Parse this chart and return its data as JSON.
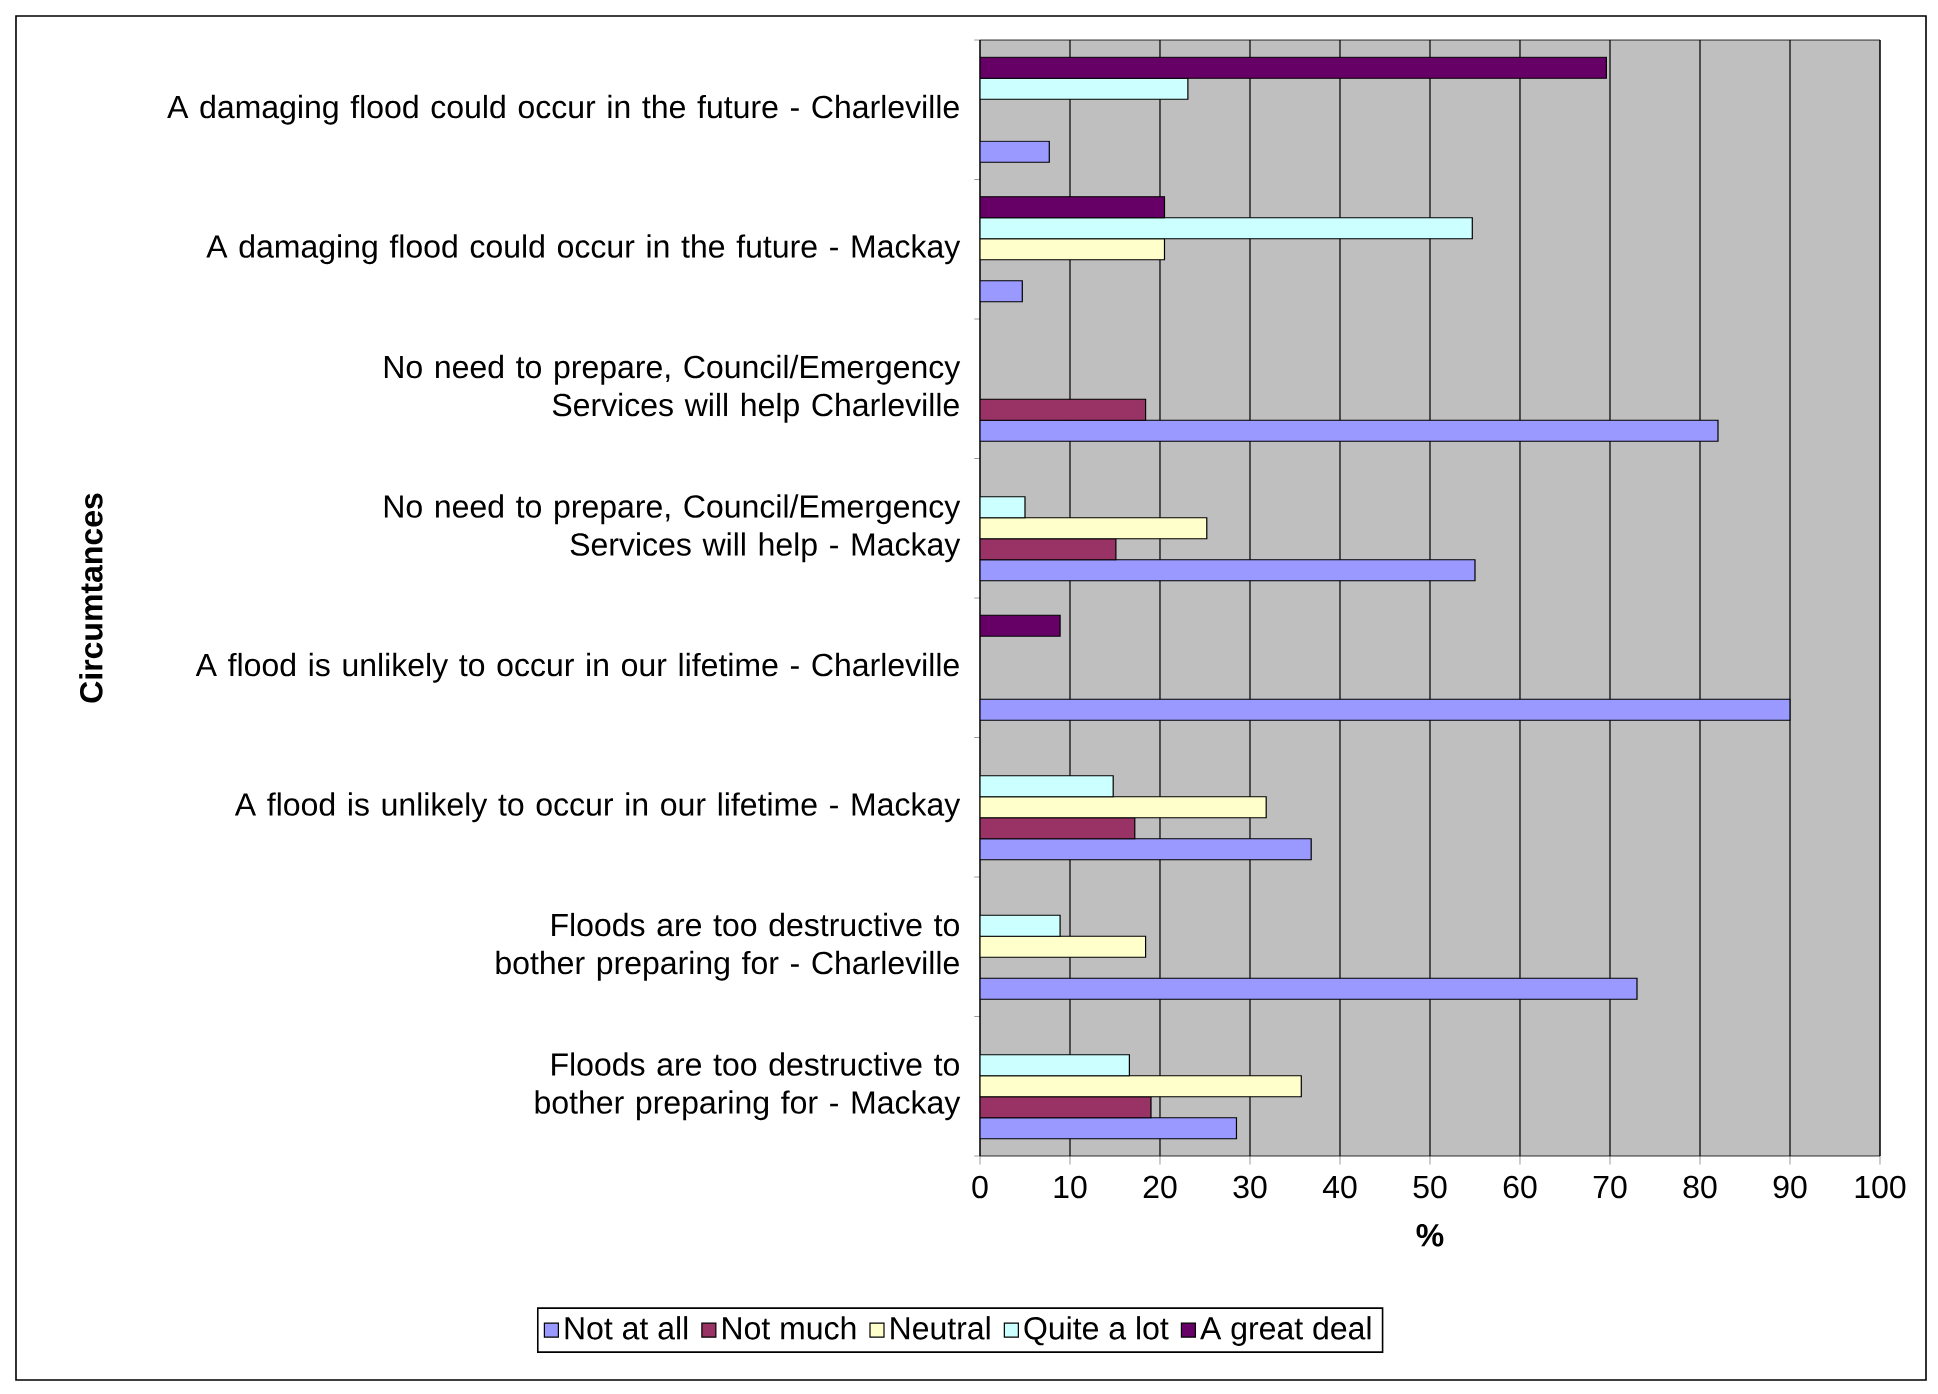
{
  "chart_data": {
    "type": "bar",
    "orientation": "horizontal",
    "xlabel": "%",
    "ylabel": "Circumtances",
    "categories": [
      "A damaging flood could occur in the future - Charleville",
      "A damaging flood could occur in the future - Mackay",
      "No need to prepare, Council/Emergency Services will help Charleville",
      "No need to prepare, Council/Emergency Services will help - Mackay",
      "A flood is unlikely to occur in our lifetime - Charleville",
      "A flood is unlikely to occur in our lifetime - Mackay",
      "Floods are too destructive to bother preparing for - Charleville",
      "Floods are too destructive to bother preparing for - Mackay"
    ],
    "series": [
      {
        "name": "Not at all",
        "color": "#9999ff",
        "values": [
          7.7,
          4.7,
          82,
          55,
          90,
          36.8,
          73,
          28.5
        ]
      },
      {
        "name": "Not much",
        "color": "#993366",
        "values": [
          null,
          null,
          18.4,
          15.1,
          null,
          17.2,
          null,
          19
        ]
      },
      {
        "name": "Neutral",
        "color": "#ffffcc",
        "values": [
          null,
          20.5,
          null,
          25.2,
          null,
          31.8,
          18.4,
          35.7
        ]
      },
      {
        "name": "Quite a lot",
        "color": "#ccffff",
        "values": [
          23.1,
          54.7,
          null,
          5,
          null,
          14.8,
          8.9,
          16.6
        ]
      },
      {
        "name": "A great deal",
        "color": "#660066",
        "values": [
          69.6,
          20.5,
          null,
          null,
          8.9,
          null,
          null,
          null
        ]
      }
    ],
    "xlim": [
      0,
      100
    ],
    "xticks": [
      0,
      10,
      20,
      30,
      40,
      50,
      60,
      70,
      80,
      90,
      100
    ],
    "grid": "x",
    "legend": "bottom"
  }
}
